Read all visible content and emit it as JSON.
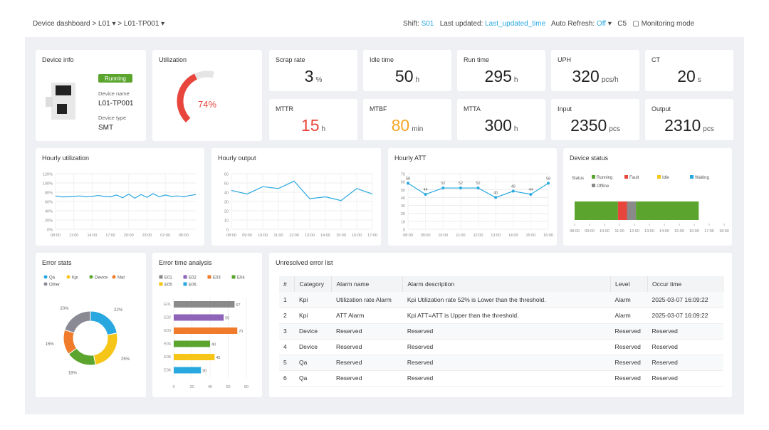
{
  "header": {
    "breadcrumb": [
      "Device dashboard",
      "L01",
      "L01-TP001"
    ],
    "shift_label": "Shift:",
    "shift": "S01",
    "updated_label": "Last updated:",
    "updated": "Last_updated_time",
    "refresh_label": "Auto Refresh:",
    "refresh": "Off",
    "code": "C5",
    "mode": "Monitoring mode"
  },
  "device_info": {
    "title": "Device info",
    "status": "Running",
    "name_label": "Device name",
    "name": "L01-TP001",
    "type_label": "Device type",
    "type": "SMT"
  },
  "utilization": {
    "title": "Utilization",
    "value": 74,
    "value_label": "74%",
    "range": [
      0,
      100
    ]
  },
  "kpis": [
    {
      "label": "Scrap rate",
      "value": 3,
      "unit": "%"
    },
    {
      "label": "Idle time",
      "value": 50,
      "unit": "h"
    },
    {
      "label": "Run time",
      "value": 295,
      "unit": "h"
    },
    {
      "label": "UPH",
      "value": 320,
      "unit": "pcs/h"
    },
    {
      "label": "CT",
      "value": 20,
      "unit": "s"
    },
    {
      "label": "MTTR",
      "value": 15,
      "unit": "h",
      "color": "#e8453c"
    },
    {
      "label": "MTBF",
      "value": 80,
      "unit": "min",
      "color": "#f5a623"
    },
    {
      "label": "MTTA",
      "value": 300,
      "unit": "h"
    },
    {
      "label": "Input",
      "value": 2350,
      "unit": "pcs"
    },
    {
      "label": "Output",
      "value": 2310,
      "unit": "pcs"
    }
  ],
  "hourly_utilization": {
    "title": "Hourly utilization",
    "color": "#29a8e0",
    "categories": [
      "08:00",
      null,
      null,
      "11:00",
      null,
      null,
      "14:00",
      null,
      null,
      "17:00",
      null,
      null,
      "20:00",
      null,
      null,
      "23:00",
      null,
      null,
      "02:00",
      null,
      null,
      "05:00",
      null,
      null
    ],
    "values": [
      72,
      70,
      70,
      71,
      72,
      70,
      71,
      73,
      71,
      70,
      74,
      68,
      76,
      67,
      75,
      69,
      77,
      70,
      74,
      71,
      72,
      70,
      73,
      75
    ],
    "ylim": [
      0,
      120
    ],
    "yticks": [
      {
        "value": 0,
        "label": "0%"
      },
      {
        "value": 20,
        "label": "20%"
      },
      {
        "value": 40,
        "label": "40%"
      },
      {
        "value": 60,
        "label": "60%"
      },
      {
        "value": 80,
        "label": "80%"
      },
      {
        "value": 100,
        "label": "100%"
      },
      {
        "value": 120,
        "label": "120%"
      }
    ]
  },
  "hourly_output": {
    "title": "Hourly output",
    "color": "#29a8e0",
    "categories": [
      "08:00",
      "09:00",
      "10:00",
      "11:00",
      "12:00",
      "13:00",
      "14:00",
      "15:00",
      "16:00",
      "17:00"
    ],
    "values": [
      42,
      38,
      46,
      44,
      52,
      33,
      35,
      31,
      44,
      38
    ],
    "ylim": [
      0,
      60
    ],
    "yticks": [
      0,
      10,
      20,
      30,
      40,
      50,
      60
    ]
  },
  "hourly_att": {
    "title": "Hourly ATT",
    "color": "#29a8e0",
    "categories": [
      "08:00",
      "09:00",
      "10:00",
      "11:00",
      "12:00",
      "13:00",
      "14:00",
      "15:00",
      "16:00"
    ],
    "values": [
      58,
      44,
      52,
      52,
      52,
      40,
      48,
      44,
      58
    ],
    "ylim": [
      0,
      70
    ],
    "yticks": [
      0,
      10,
      20,
      30,
      40,
      50,
      60,
      70
    ]
  },
  "device_status": {
    "title": "Device status",
    "legend_title": "Status",
    "statuses": [
      {
        "name": "Running",
        "color": "#5ba52f"
      },
      {
        "name": "Fault",
        "color": "#e8453c"
      },
      {
        "name": "Idle",
        "color": "#f5c518"
      },
      {
        "name": "Waiting",
        "color": "#29a8e0"
      },
      {
        "name": "Offline",
        "color": "#8a8a8a"
      }
    ],
    "timeline": [
      {
        "status": "Running",
        "value": 2.9
      },
      {
        "status": "Fault",
        "value": 0.6
      },
      {
        "status": "Offline",
        "value": 0.6
      },
      {
        "status": "Running",
        "value": 4.2
      }
    ],
    "xlim": [
      0,
      10
    ],
    "xticks": [
      {
        "value": 0,
        "label": "08:00"
      },
      {
        "value": 1,
        "label": "09:00"
      },
      {
        "value": 2,
        "label": "10:00"
      },
      {
        "value": 3,
        "label": "11:00"
      },
      {
        "value": 4,
        "label": "12:00"
      },
      {
        "value": 5,
        "label": "13:00"
      },
      {
        "value": 6,
        "label": "14:00"
      },
      {
        "value": 7,
        "label": "15:00"
      },
      {
        "value": 8,
        "label": "16:00"
      },
      {
        "value": 9,
        "label": "17:00"
      },
      {
        "value": 10,
        "label": "18:00"
      }
    ]
  },
  "error_stats": {
    "title": "Error stats",
    "categories": [
      "Qa",
      "Kpi",
      "Device",
      "Mat",
      "Other"
    ],
    "colors": [
      "#29a8e0",
      "#f5c518",
      "#5ba52f",
      "#f07b2a",
      "#8a8a95"
    ],
    "values": [
      22,
      25,
      18,
      15,
      20
    ],
    "value_labels": [
      "22%",
      "25%",
      "18%",
      "15%",
      "20%"
    ]
  },
  "error_time": {
    "title": "Error time analysis",
    "categories": [
      "E01",
      "E02",
      "E03",
      "E04",
      "E05",
      "E06"
    ],
    "colors": [
      "#8a8a8a",
      "#8e63b8",
      "#f07b2a",
      "#5ba52f",
      "#f5c518",
      "#29a8e0"
    ],
    "values": [
      67,
      55,
      70,
      40,
      45,
      30
    ],
    "xlim": [
      0,
      80
    ],
    "xticks": [
      0,
      20,
      40,
      60,
      80
    ]
  },
  "error_list": {
    "title": "Unresolved error list",
    "columns": [
      "#",
      "Category",
      "Alarm name",
      "Alarm description",
      "Level",
      "Occur time"
    ],
    "rows": [
      [
        "1",
        "Kpi",
        "Utilization rate Alarm",
        "Kpi Utilization rate 52% is Lower than the threshold.",
        "Alarm",
        "2025-03-07 16:09:22"
      ],
      [
        "2",
        "Kpi",
        "ATT Alarm",
        "Kpi ATT=ATT is Upper than the threshold.",
        "Alarm",
        "2025-03-07 16:09:22"
      ],
      [
        "3",
        "Device",
        "Reserved",
        "Reserved",
        "Reserved",
        "Reserved"
      ],
      [
        "4",
        "Device",
        "Reserved",
        "Reserved",
        "Reserved",
        "Reserved"
      ],
      [
        "5",
        "Qa",
        "Reserved",
        "Reserved",
        "Reserved",
        "Reserved"
      ],
      [
        "6",
        "Qa",
        "Reserved",
        "Reserved",
        "Reserved",
        "Reserved"
      ]
    ]
  }
}
